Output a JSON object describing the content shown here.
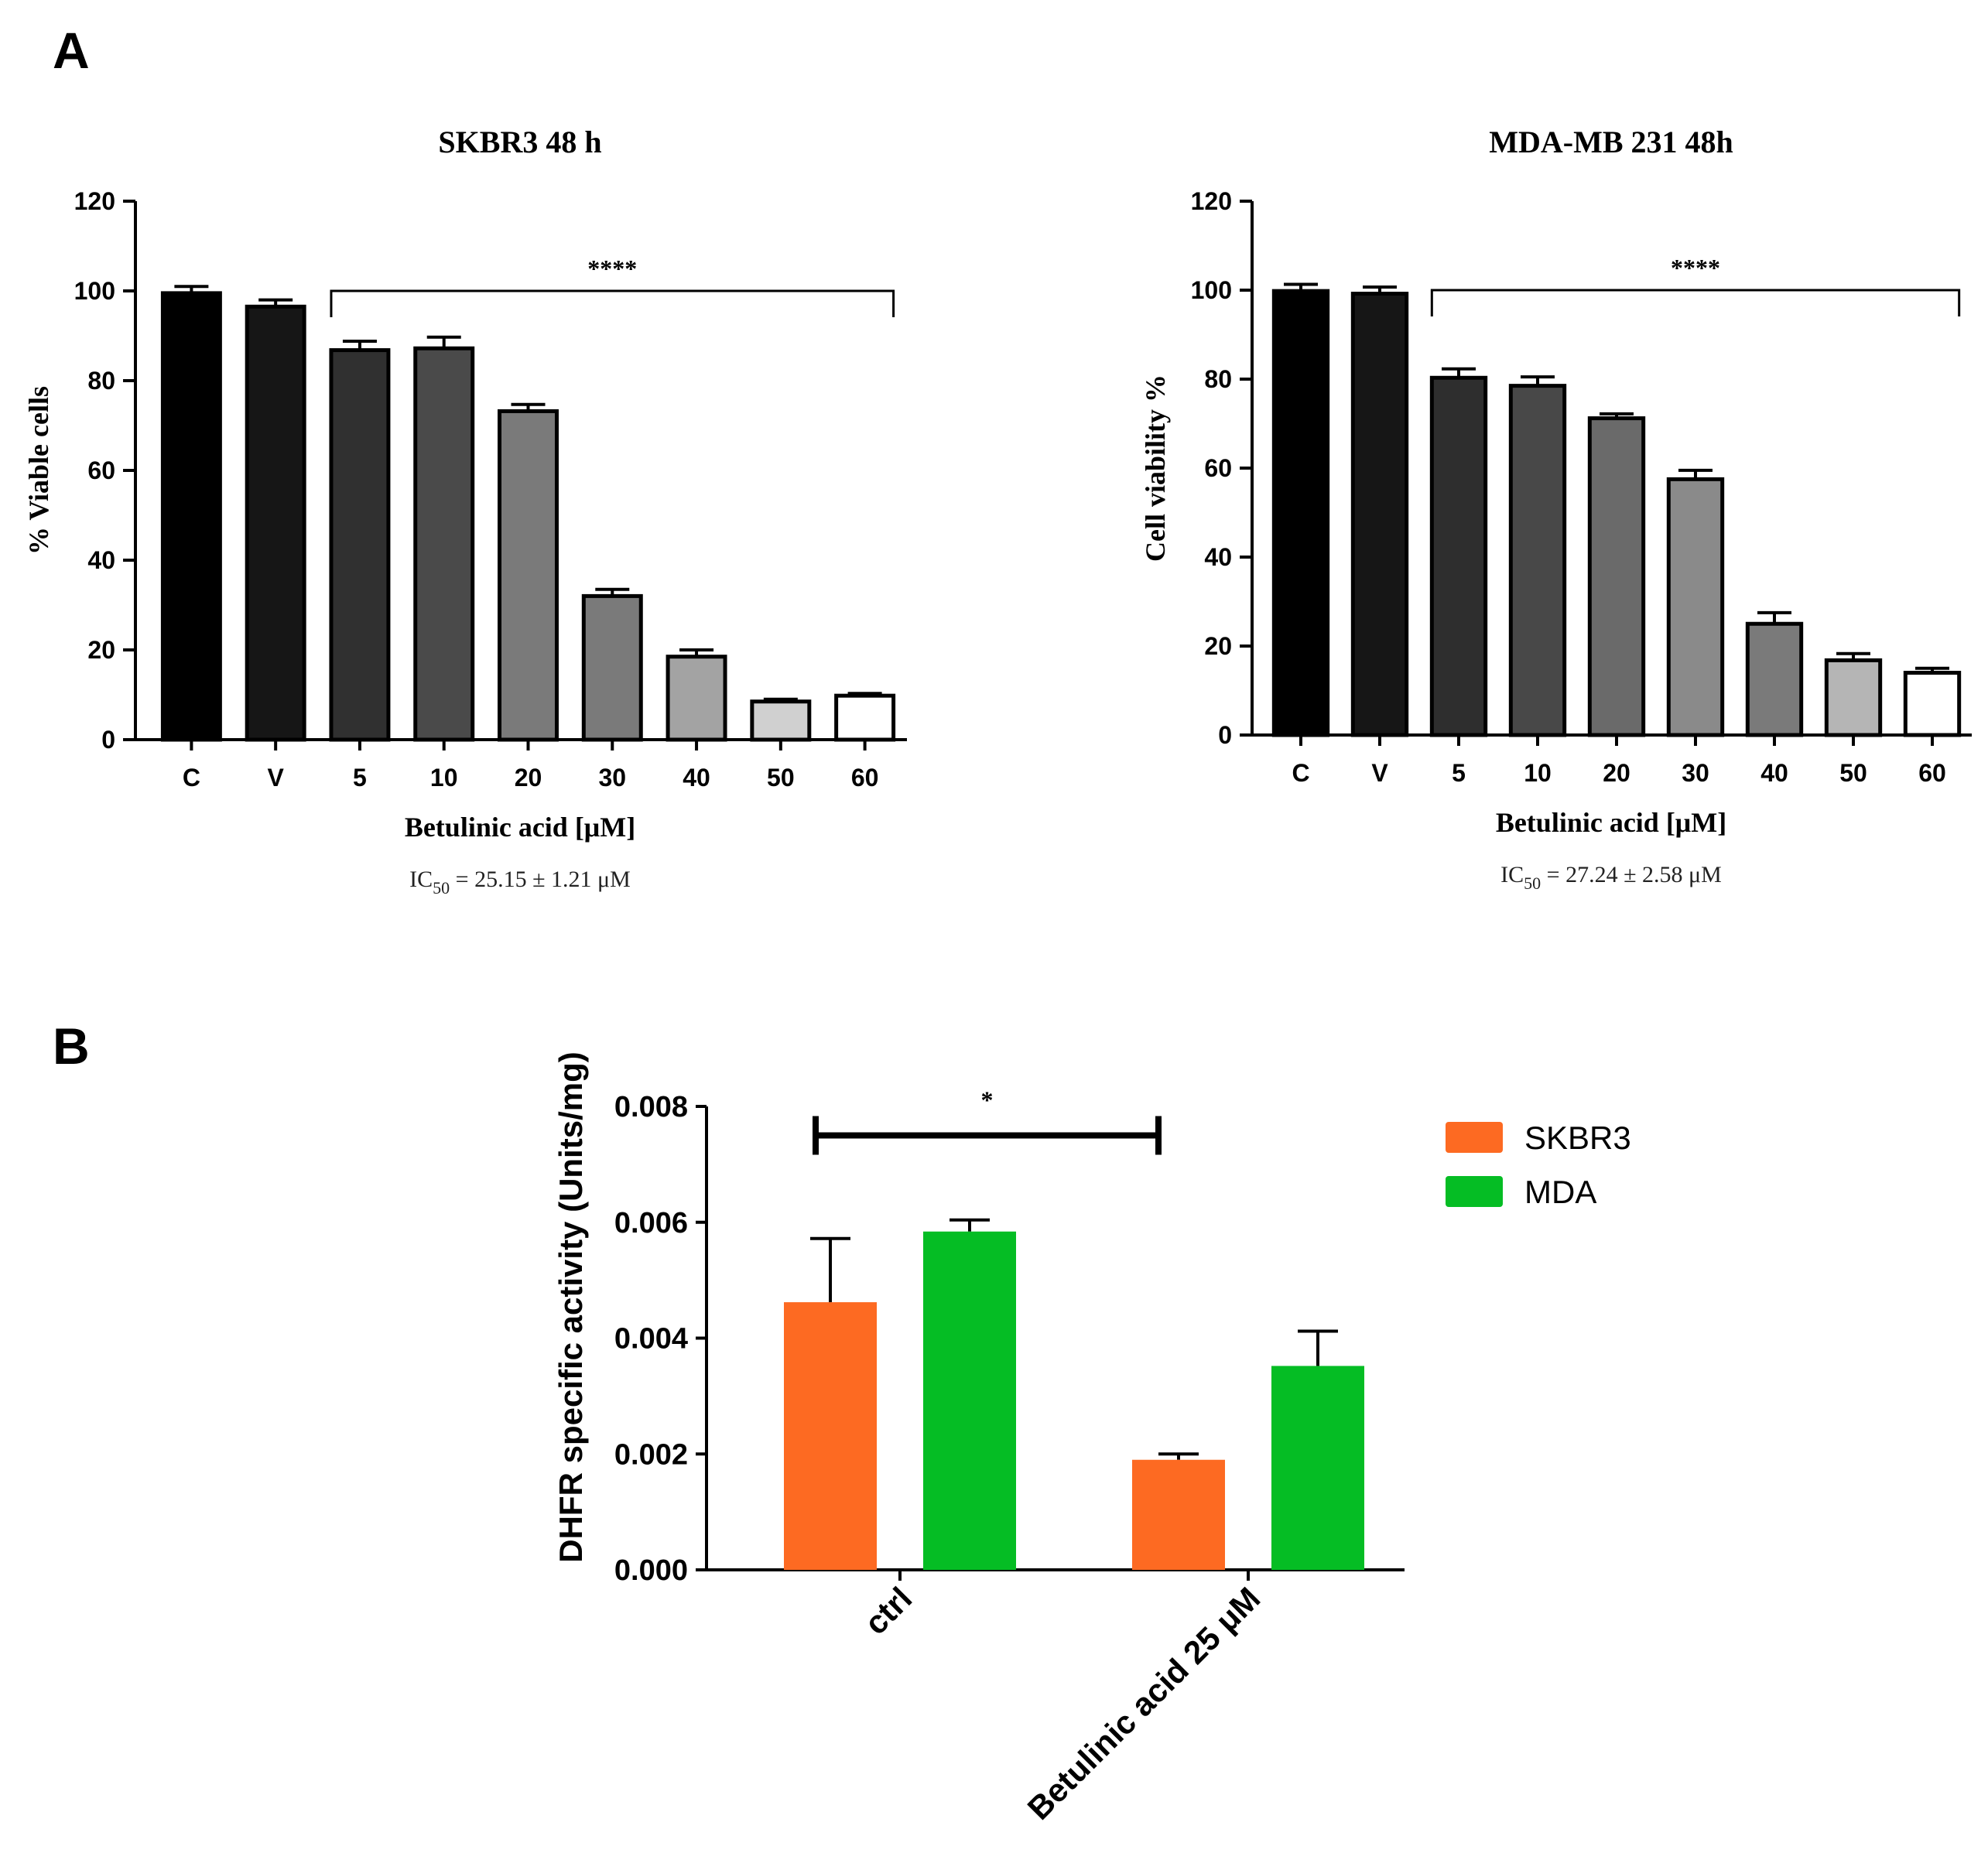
{
  "panel_labels": [
    "A",
    "B"
  ],
  "chart_data": [
    {
      "type": "bar",
      "title": "SKBR3 48 h",
      "categories": [
        "C",
        "V",
        "5",
        "10",
        "20",
        "30",
        "40",
        "50",
        "60"
      ],
      "values": [
        99.5,
        96.5,
        86.8,
        87.2,
        73.2,
        32.0,
        18.5,
        8.5,
        9.8
      ],
      "errors": [
        1.5,
        1.5,
        2.0,
        2.5,
        1.5,
        1.5,
        1.5,
        0.5,
        0.5
      ],
      "colors": [
        "#000000",
        "#161616",
        "#303030",
        "#4a4a4a",
        "#7a7a7a",
        "#7a7a7a",
        "#a3a3a3",
        "#d0d0d0",
        "#ffffff"
      ],
      "ylabel": "% Viable cells",
      "xlabel": "Betulinic acid [μM]",
      "yticks": [
        0,
        20,
        40,
        60,
        80,
        100,
        120
      ],
      "ylim": [
        0,
        120
      ],
      "significance": {
        "label": "****",
        "from": "5",
        "to": "60",
        "y": 100
      },
      "ic50": {
        "prefix": "IC",
        "sub": "50",
        "text": " = 25.15  ±  1.21 μM"
      }
    },
    {
      "type": "bar",
      "title": "MDA-MB 231 48h",
      "categories": [
        "C",
        "V",
        "5",
        "10",
        "20",
        "30",
        "40",
        "50",
        "60"
      ],
      "values": [
        99.8,
        99.2,
        80.3,
        78.5,
        71.2,
        57.5,
        25.0,
        16.8,
        14.0
      ],
      "errors": [
        1.5,
        1.5,
        2.0,
        2.0,
        1.0,
        2.0,
        2.5,
        1.5,
        1.0
      ],
      "colors": [
        "#000000",
        "#161616",
        "#2e2e2e",
        "#484848",
        "#6a6a6a",
        "#8a8a8a",
        "#7a7a7a",
        "#b5b5b5",
        "#ffffff"
      ],
      "ylabel": "Cell viability %",
      "xlabel": "Betulinic acid [μM]",
      "yticks": [
        0,
        20,
        40,
        60,
        80,
        100,
        120
      ],
      "ylim": [
        0,
        120
      ],
      "significance": {
        "label": "****",
        "from": "5",
        "to": "60",
        "y": 100
      },
      "ic50": {
        "prefix": "IC",
        "sub": "50",
        "text": " = 27.24 ± 2.58 μM"
      }
    },
    {
      "type": "bar",
      "categories": [
        "ctrl",
        "Betulinic acid 25 μM"
      ],
      "series": [
        {
          "name": "SKBR3",
          "color": "#fd6a22",
          "values": [
            0.00462,
            0.0019
          ],
          "errors": [
            0.0011,
            0.0001
          ]
        },
        {
          "name": "MDA",
          "color": "#05bd24",
          "values": [
            0.00584,
            0.00352
          ],
          "errors": [
            0.0002,
            0.0006
          ]
        }
      ],
      "ylabel": "DHFR specific activity (Units/mg)",
      "yticks": [
        "0.000",
        "0.002",
        "0.004",
        "0.006",
        "0.008"
      ],
      "ylim": [
        0,
        0.008
      ],
      "significance": {
        "label": "*",
        "from": "ctrl",
        "to": "Betulinic acid 25 μM",
        "y": 0.0075
      }
    }
  ]
}
